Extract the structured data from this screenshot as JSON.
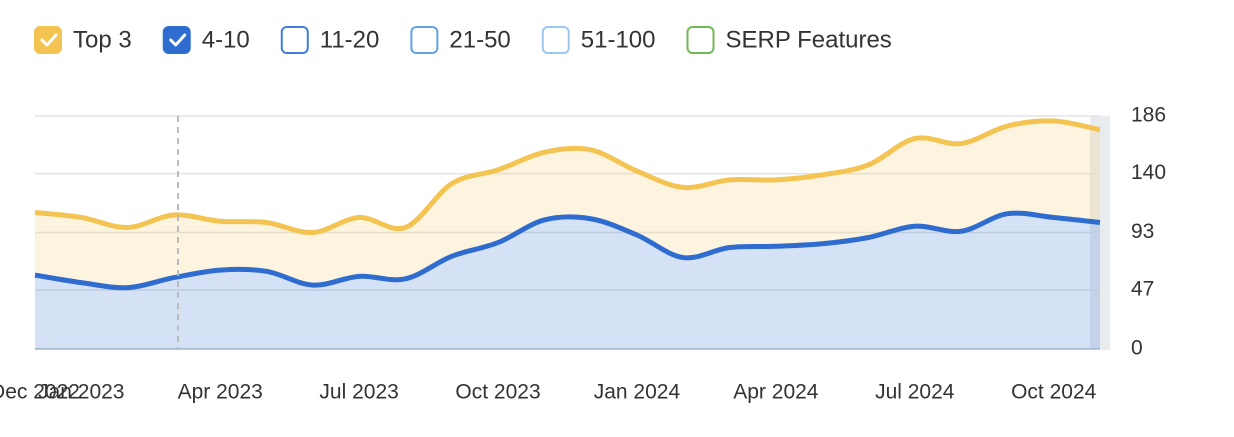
{
  "chart_data": {
    "type": "stacked_area",
    "categories": [
      "Dec 2022",
      "Jan 2023",
      null,
      null,
      "Apr 2023",
      null,
      null,
      "Jul 2023",
      null,
      null,
      "Oct 2023",
      null,
      null,
      "Jan 2024",
      null,
      null,
      "Apr 2024",
      null,
      null,
      "Jul 2024",
      null,
      null,
      "Oct 2024",
      null
    ],
    "series": [
      {
        "name": "Top 3",
        "color": "#f3c452",
        "checked": true,
        "values": [
          50,
          52,
          48,
          50,
          39,
          39,
          42,
          47,
          41,
          58,
          58,
          54,
          55,
          51,
          56,
          54,
          53,
          55,
          58,
          70,
          70,
          70,
          77,
          74
        ]
      },
      {
        "name": "4-10",
        "color": "#2f6ccf",
        "checked": true,
        "values": [
          59,
          53,
          49,
          57,
          63,
          62,
          51,
          58,
          56,
          74,
          85,
          103,
          104,
          91,
          73,
          81,
          82,
          84,
          89,
          98,
          94,
          108,
          105,
          101
        ]
      },
      {
        "name": "11-20",
        "color": "#3d7fd9",
        "checked": false
      },
      {
        "name": "21-50",
        "color": "#5fa3e6",
        "checked": false
      },
      {
        "name": "51-100",
        "color": "#9cc8f0",
        "checked": false
      },
      {
        "name": "SERP Features",
        "color": "#72b855",
        "checked": false
      }
    ],
    "ylim": [
      0,
      186
    ],
    "yticks": [
      0,
      47,
      93,
      140,
      186
    ],
    "grid": true
  }
}
